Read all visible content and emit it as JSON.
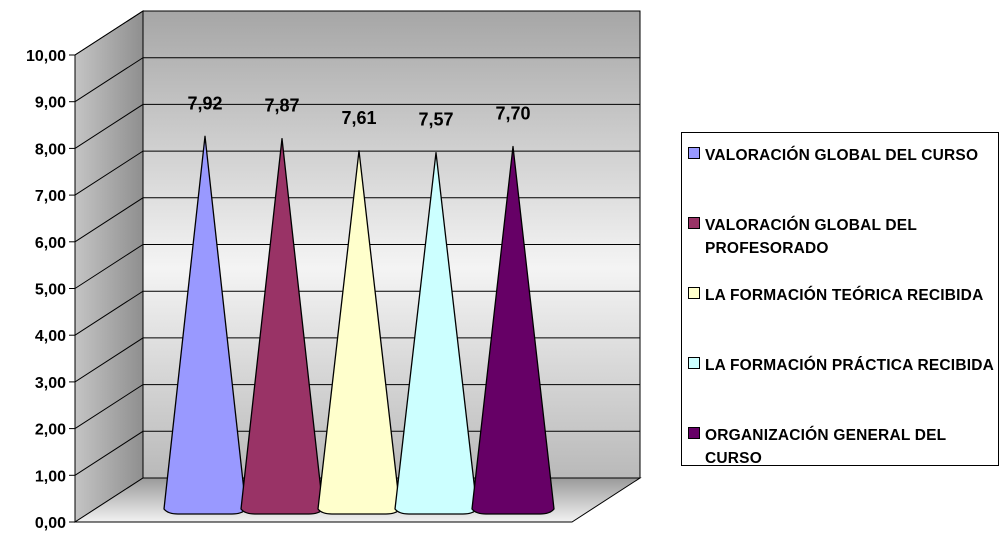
{
  "chart_data": {
    "type": "bar",
    "style": "3d-cone",
    "categories": [
      "VALORACIÓN GLOBAL DEL CURSO",
      "VALORACIÓN GLOBAL DEL PROFESORADO",
      "LA FORMACIÓN TEÓRICA RECIBIDA",
      "LA FORMACIÓN PRÁCTICA RECIBIDA",
      "ORGANIZACIÓN GENERAL DEL CURSO"
    ],
    "values": [
      7.92,
      7.87,
      7.61,
      7.57,
      7.7
    ],
    "data_labels": [
      "7,92",
      "7,87",
      "7,61",
      "7,57",
      "7,70"
    ],
    "colors": [
      "#9999ff",
      "#993366",
      "#ffffcc",
      "#ccffff",
      "#660066"
    ],
    "ylim": [
      0,
      10
    ],
    "yticks": [
      "0,00",
      "1,00",
      "2,00",
      "3,00",
      "4,00",
      "5,00",
      "6,00",
      "7,00",
      "8,00",
      "9,00",
      "10,00"
    ],
    "grid": true,
    "legend": "right"
  }
}
